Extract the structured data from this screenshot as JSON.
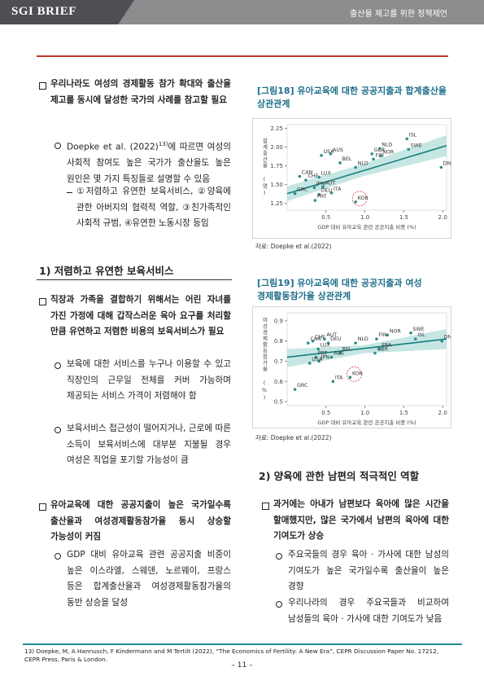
{
  "header": {
    "brand": "SGI BRIEF",
    "topic": "출산율 제고를 위한 정책제언"
  },
  "left": {
    "b1": "우리나라도 여성의 경제활동 참가 확대와 출산율 제고를 동시에 달성한 국가의 사례를 참고할 필요",
    "s1": {
      "before": "Doepke et al. (2022)",
      "note_ref": "13)",
      "after": "에 따르면 여성의 사회적 참여도 높은 국가가 출산율도 높은 원인은 몇 가지 특징들로 설명할 수 있음"
    },
    "d1": "①저렴하고 유연한 보육서비스, ②양육에 관한 아버지의 협력적 역할, ③친가족적인 사회적 규범, ④유연한 노동시장 등임",
    "heading": "1) 저렴하고 유연한 보육서비스",
    "b2": "직장과 가족을 결합하기 위해서는 어린 자녀를 가진 가정에 대해 갑작스러운 육아 요구를 처리할 만큼 유연하고 저렴한 비용의 보육서비스가 필요",
    "s2": "보육에 대한 서비스를 누구나 이용할 수 있고 직장인의 근무일 전체를 커버 가능하며 제공되는 서비스 가격이 저렴해야 함",
    "s3": "보육서비스 접근성이 떨어지거나, 근로에 따른 소득이 보육서비스에 대부분 지불될 경우 여성은 직업을 포기할 가능성이 큼",
    "b3": "유아교육에 대한 공공지출이 높은 국가일수록 출산율과 여성경제활동참가율 동시 상승할 가능성이 커짐",
    "s4": "GDP 대비 유아교육 관련 공공지출 비중이 높은 이스라엘, 스웨덴, 노르웨이, 프랑스 등은 합계출산율과 여성경제활동참가율의 동반 상승을 달성"
  },
  "right": {
    "heading": "2) 양육에 관한 남편의 적극적인 역할",
    "b4": "과거에는 아내가 남편보다 육아에 많은 시간을 할애했지만, 많은 국가에서 남편의 육아에 대한 기여도가 상승",
    "s5": "주요국들의 경우 육아 · 가사에 대한 남성의 기여도가 높은 국가일수록 출산율이 높은 경향",
    "s6": "우리나라의 경우 주요국들과 비교하여 남성들의 육아 · 가사에 대한 기여도가 낮음"
  },
  "chart_data": [
    {
      "type": "scatter",
      "title": "[그림18] 유아교육에 대한 공공지출과 합계출산율 상관관계",
      "source": "자료: Doepke et al.(2022)",
      "x_label": "GDP 대비 유아교육 관련 공공지출 비중 (%)",
      "y_label": "합계출산율 (명)",
      "color": "#2a8f8c",
      "labels": [
        "USA",
        "AUS",
        "BEL",
        "NLD",
        "GBR",
        "FIN",
        "NLD",
        "NOR",
        "ISL",
        "SWE",
        "DNK",
        "CAN",
        "CHE",
        "LUX",
        "JPN",
        "AUT",
        "ITA",
        "DEU",
        "PRT",
        "GRC",
        "KOR"
      ],
      "x": [
        0.44,
        0.56,
        0.68,
        0.88,
        1.09,
        1.11,
        1.19,
        1.2,
        1.54,
        1.56,
        1.98,
        0.16,
        0.24,
        0.41,
        0.35,
        0.46,
        0.57,
        0.41,
        0.36,
        0.1,
        0.88
      ],
      "y": [
        1.89,
        1.91,
        1.79,
        1.73,
        1.91,
        1.84,
        1.98,
        1.88,
        2.11,
        1.97,
        1.73,
        1.61,
        1.56,
        1.6,
        1.46,
        1.47,
        1.39,
        1.37,
        1.29,
        1.38,
        1.27
      ],
      "highlight": 20,
      "trend": {
        "x": [
          0,
          2.05
        ],
        "y": [
          1.38,
          2.02
        ]
      },
      "band": {
        "x": [
          0,
          1,
          2.05
        ],
        "lower": [
          1.28,
          1.62,
          1.88
        ],
        "upper": [
          1.48,
          1.78,
          2.16
        ]
      },
      "xlim": [
        0,
        2.05
      ],
      "ylim": [
        1.16,
        2.3
      ],
      "xticks": [
        0.5,
        {
          "value": 1,
          "label": "1.0"
        },
        1.5,
        {
          "value": 2,
          "label": "2.0"
        }
      ],
      "yticks": [
        2.25,
        {
          "value": 2,
          "label": "2.00"
        },
        1.75,
        {
          "value": 1.5,
          "label": "1.50"
        },
        1.25
      ]
    },
    {
      "type": "scatter",
      "title": "[그림19] 유아교육에 대한 공공지출과 여성 경제활동참가율 상관관계",
      "source": "자료: Doepke et al.(2022)",
      "x_label": "GDP 대비 유아교육 관련 공공지출 비중 (%)",
      "y_label": "여성경제활동참가율 (%)",
      "color": "#2a8f8c",
      "labels": [
        "CAN",
        "CHE",
        "AUT",
        "DEU",
        "LUX",
        "BEL",
        "NLD",
        "FIN",
        "NOR",
        "SWE",
        "ISL",
        "DNK",
        "PRT",
        "JPN",
        "AUS",
        "USA",
        "GBR",
        "FRA",
        "KOR",
        "ITA",
        "GRC"
      ],
      "x": [
        0.27,
        0.33,
        0.48,
        0.53,
        0.4,
        0.68,
        0.88,
        1.15,
        1.29,
        1.59,
        1.65,
        1.99,
        0.37,
        0.41,
        0.57,
        0.29,
        1.13,
        1.19,
        0.81,
        0.59,
        0.1
      ],
      "y": [
        0.79,
        0.8,
        0.81,
        0.79,
        0.76,
        0.74,
        0.79,
        0.81,
        0.83,
        0.84,
        0.81,
        0.8,
        0.72,
        0.7,
        0.72,
        0.69,
        0.74,
        0.76,
        0.62,
        0.6,
        0.56
      ],
      "highlight": 18,
      "trend": {
        "x": [
          0,
          2.05
        ],
        "y": [
          0.72,
          0.81
        ]
      },
      "band": {
        "x": [
          0,
          1,
          2.05
        ],
        "lower": [
          0.67,
          0.74,
          0.76
        ],
        "upper": [
          0.76,
          0.78,
          0.86
        ]
      },
      "xlim": [
        0,
        2.05
      ],
      "ylim": [
        0.48,
        0.94
      ],
      "xticks": [
        0.5,
        {
          "value": 1,
          "label": "1.0"
        },
        1.5,
        {
          "value": 2,
          "label": "2.0"
        }
      ],
      "yticks": [
        0.9,
        0.8,
        0.7,
        0.6,
        0.5
      ]
    }
  ],
  "footnote": {
    "ref": "13)",
    "text": "Doepke, M, A Hannusch, F Kindermann and M Tertilt (2022), “The Economics of Fertility: A New Era”, CEPR Discussion Paper No. 17212, CEPR Press, Paris & London."
  },
  "page_number": "– 11 –"
}
